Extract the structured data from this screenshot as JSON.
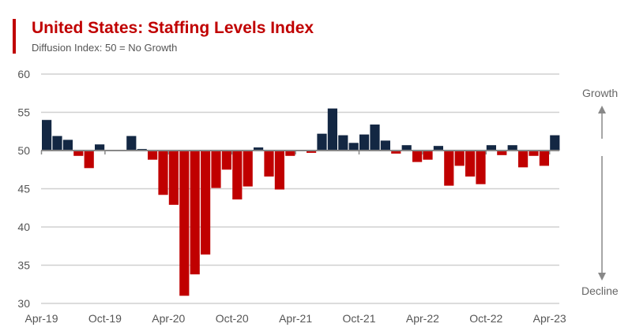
{
  "chart_data": {
    "type": "bar",
    "title": "United States: Staffing Levels Index",
    "subtitle": "Diffusion Index: 50 = No Growth",
    "baseline": 50,
    "ylim": [
      30,
      60
    ],
    "yticks": [
      30,
      35,
      40,
      45,
      50,
      55,
      60
    ],
    "grid": true,
    "xtick_labels": [
      "Apr-19",
      "Oct-19",
      "Apr-20",
      "Oct-20",
      "Apr-21",
      "Oct-21",
      "Apr-22",
      "Oct-22",
      "Apr-23"
    ],
    "start_month": "Apr-19",
    "values": [
      54.0,
      51.9,
      51.4,
      49.3,
      47.7,
      50.8,
      50.0,
      50.0,
      51.9,
      50.2,
      48.8,
      44.2,
      42.9,
      31.0,
      33.8,
      36.4,
      45.1,
      47.5,
      43.6,
      45.3,
      50.4,
      46.6,
      44.9,
      49.3,
      50.0,
      49.7,
      52.2,
      55.5,
      52.0,
      51.0,
      52.1,
      53.4,
      51.3,
      49.6,
      50.7,
      48.5,
      48.8,
      50.6,
      45.4,
      48.0,
      46.6,
      45.6,
      50.7,
      49.4,
      50.7,
      47.8,
      49.3,
      48.0,
      52.0
    ],
    "colors": {
      "above": "#132743",
      "below": "#c00000",
      "title": "#c00000"
    },
    "annotations": {
      "up": "Growth",
      "down": "Decline"
    }
  }
}
